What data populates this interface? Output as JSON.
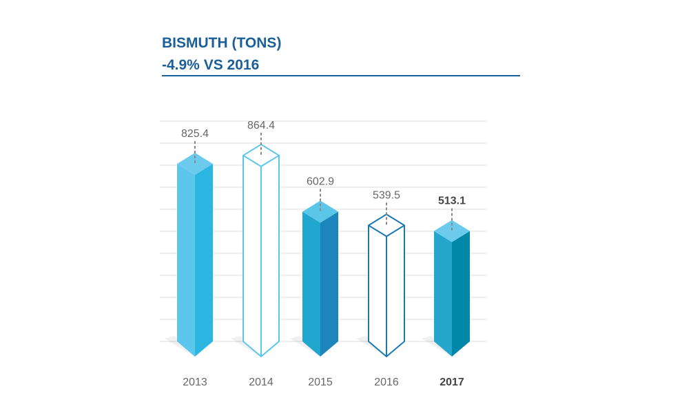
{
  "header": {
    "title": "BISMUTH (TONS)",
    "subtitle": "-4.9% VS 2016"
  },
  "chart_data": {
    "type": "bar",
    "title": "BISMUTH (TONS)",
    "subtitle": "-4.9% VS 2016",
    "categories": [
      "2013",
      "2014",
      "2015",
      "2016",
      "2017"
    ],
    "values": [
      825.4,
      864.4,
      602.9,
      539.5,
      513.1
    ],
    "value_labels": [
      "825.4",
      "864.4",
      "602.9",
      "539.5",
      "513.1"
    ],
    "highlight_category": "2017",
    "bar_styles": [
      "filled",
      "outline",
      "filled",
      "outline",
      "filled"
    ],
    "colors": {
      "title": "#1a5f99",
      "grid": "#dcdcdc",
      "label": "#666666",
      "label_bold": "#444444",
      "bars": [
        {
          "top": "#6ccbed",
          "left": "#5cc6ec",
          "right": "#2bb7e2"
        },
        {
          "stroke": "#5bc6ec"
        },
        {
          "top": "#5cc6e8",
          "left": "#21a6cf",
          "right": "#1c85bc"
        },
        {
          "stroke": "#1a78b2"
        },
        {
          "top": "#6ccbed",
          "left": "#25a6cc",
          "right": "#0087a8"
        }
      ]
    },
    "xlabel": "",
    "ylabel": "",
    "grid": true,
    "legend": "none"
  }
}
